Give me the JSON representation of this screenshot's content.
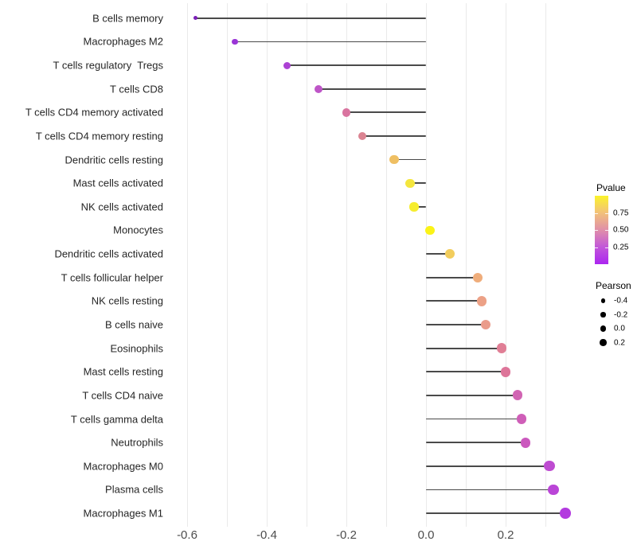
{
  "chart_data": {
    "type": "lollipop",
    "orientation": "horizontal",
    "title": "",
    "xlabel": "",
    "ylabel": "",
    "xlim": [
      -0.655,
      0.37
    ],
    "grid": "vertical-only",
    "gridline_values": [
      -0.6,
      -0.5,
      -0.4,
      -0.3,
      -0.2,
      -0.1,
      0.0,
      0.1,
      0.2,
      0.3
    ],
    "x_ticks": [
      {
        "label": "-0.6",
        "value": -0.6
      },
      {
        "label": "-0.4",
        "value": -0.4
      },
      {
        "label": "-0.2",
        "value": -0.2
      },
      {
        "label": "0.0",
        "value": 0.0
      },
      {
        "label": "0.2",
        "value": 0.2
      }
    ],
    "points": [
      {
        "label": "B cells memory",
        "pearson": -0.58,
        "color": "#7B1FB8"
      },
      {
        "label": "Macrophages M2",
        "pearson": -0.48,
        "color": "#9A35D6"
      },
      {
        "label": "T cells regulatory  Tregs",
        "pearson": -0.35,
        "color": "#AC41D4"
      },
      {
        "label": "T cells CD8",
        "pearson": -0.27,
        "color": "#BE55C7"
      },
      {
        "label": "T cells CD4 memory activated",
        "pearson": -0.2,
        "color": "#D9749F"
      },
      {
        "label": "T cells CD4 memory resting",
        "pearson": -0.16,
        "color": "#DB8492"
      },
      {
        "label": "Dendritic cells resting",
        "pearson": -0.08,
        "color": "#EFBF63"
      },
      {
        "label": "Mast cells activated",
        "pearson": -0.04,
        "color": "#F4E63E"
      },
      {
        "label": "NK cells activated",
        "pearson": -0.03,
        "color": "#F6ED2F"
      },
      {
        "label": "Monocytes",
        "pearson": 0.01,
        "color": "#FBF317"
      },
      {
        "label": "Dendritic cells activated",
        "pearson": 0.06,
        "color": "#F2CD5D"
      },
      {
        "label": "T cells follicular helper",
        "pearson": 0.13,
        "color": "#EFAD7B"
      },
      {
        "label": "NK cells resting",
        "pearson": 0.14,
        "color": "#ECA186"
      },
      {
        "label": "B cells naive",
        "pearson": 0.15,
        "color": "#EA9C8B"
      },
      {
        "label": "Eosinophils",
        "pearson": 0.19,
        "color": "#E07E95"
      },
      {
        "label": "Mast cells resting",
        "pearson": 0.2,
        "color": "#DD7599"
      },
      {
        "label": "T cells CD4 naive",
        "pearson": 0.23,
        "color": "#D164B3"
      },
      {
        "label": "T cells gamma delta",
        "pearson": 0.24,
        "color": "#CF5EB8"
      },
      {
        "label": "Neutrophils",
        "pearson": 0.25,
        "color": "#CB58BE"
      },
      {
        "label": "Macrophages M0",
        "pearson": 0.31,
        "color": "#BE4CD1"
      },
      {
        "label": "Plasma cells",
        "pearson": 0.32,
        "color": "#BA45D7"
      },
      {
        "label": "Macrophages M1",
        "pearson": 0.35,
        "color": "#B33ADF"
      }
    ],
    "legend": {
      "pvalue": {
        "title": "Pvalue",
        "range": [
          0,
          1
        ],
        "ticks": [
          {
            "label": "0.75",
            "value": 0.75
          },
          {
            "label": "0.50",
            "value": 0.5
          },
          {
            "label": "0.25",
            "value": 0.25
          }
        ],
        "gradient_top_to_bottom": [
          "#FBF32A",
          "#F2C17A",
          "#E08FA9",
          "#C257D9",
          "#AB25F0"
        ]
      },
      "pearson": {
        "title": "Pearson",
        "entries": [
          {
            "label": "-0.4",
            "value": -0.4
          },
          {
            "label": "-0.2",
            "value": -0.2
          },
          {
            "label": "0.0",
            "value": 0.0
          },
          {
            "label": "0.2",
            "value": 0.2
          }
        ]
      }
    },
    "colors": {
      "background": "#ffffff",
      "gridline": "#eaeaea",
      "stem": "#4a4a4a",
      "axis_text": "#4d4d4d",
      "label_text": "#262626"
    }
  }
}
